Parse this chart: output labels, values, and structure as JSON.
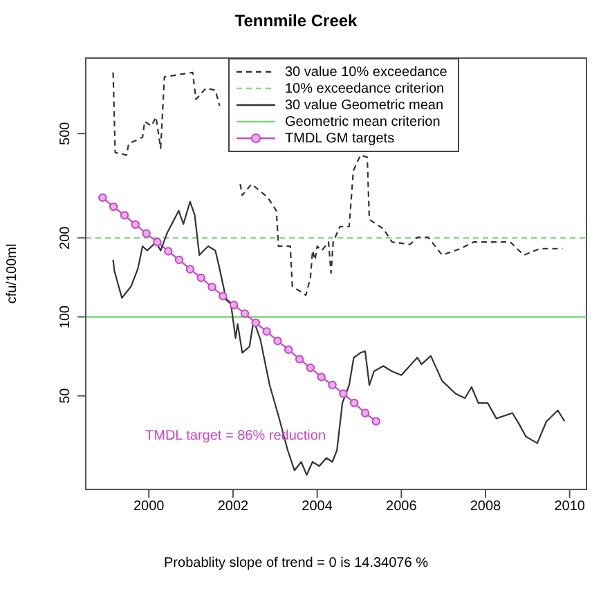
{
  "chart_data": {
    "type": "line",
    "title": "Tennmile Creek",
    "ylabel": "cfu/100ml",
    "log": "y",
    "legend": "top",
    "xlim": [
      1998.5,
      2010.4
    ],
    "xticks": [
      2000,
      2002,
      2004,
      2006,
      2008,
      2010
    ],
    "ylim": [
      22,
      970
    ],
    "yticks": [
      50,
      100,
      200,
      500
    ],
    "annotations": [
      "TMDL target = 86% reduction",
      "Probablity slope of trend = 0 is  14.34076 %"
    ],
    "ref_lines": [
      {
        "axis": "y",
        "value": 200,
        "label": "10% exceedance criterion",
        "color": "#88dd88",
        "line_style": "dashed"
      },
      {
        "axis": "y",
        "value": 100,
        "label": "Geometric mean criterion",
        "color": "#77dd77",
        "line_style": "solid"
      }
    ],
    "series": [
      {
        "name": "30 value 10% exceedance",
        "color": "#333333",
        "line_style": "dashed",
        "x": [
          1999.15,
          1999.2,
          1999.47,
          1999.52,
          1999.85,
          1999.9,
          2000.06,
          2000.17,
          2000.28,
          2000.37,
          2001.04,
          2001.12,
          2001.36,
          2001.58,
          2001.68,
          2001.9,
          2002.06,
          2002.17,
          2002.22,
          2002.44,
          2002.82,
          2003.03,
          2003.08,
          2003.36,
          2003.41,
          2003.73,
          2003.84,
          2003.89,
          2003.95,
          2004.0,
          2004.11,
          2004.27,
          2004.33,
          2004.38,
          2004.54,
          2004.76,
          2004.86,
          2005.03,
          2005.19,
          2005.24,
          2005.57,
          2005.78,
          2006.21,
          2006.38,
          2006.64,
          2006.97,
          2007.4,
          2007.72,
          2008.59,
          2008.91,
          2009.29,
          2009.83
        ],
        "values": [
          855,
          423,
          414,
          457,
          484,
          556,
          535,
          578,
          440,
          822,
          855,
          676,
          745,
          731,
          638,
          null,
          null,
          321,
          291,
          321,
          286,
          254,
          186,
          186,
          131,
          121,
          141,
          179,
          165,
          186,
          179,
          193,
          147,
          193,
          221,
          221,
          361,
          414,
          406,
          235,
          217,
          193,
          189,
          201,
          201,
          172,
          182,
          193,
          193,
          172,
          182,
          182
        ]
      },
      {
        "name": "30 value Geometric mean",
        "color": "#333333",
        "line_style": "solid",
        "x": [
          1999.15,
          1999.18,
          1999.36,
          1999.58,
          1999.74,
          1999.85,
          1999.96,
          2000.17,
          2000.28,
          2000.44,
          2000.71,
          2000.82,
          2000.98,
          2001.09,
          2001.2,
          2001.3,
          2001.41,
          2001.58,
          2001.68,
          2001.84,
          2001.95,
          2002.06,
          2002.11,
          2002.22,
          2002.39,
          2002.49,
          2002.65,
          2002.87,
          2003.08,
          2003.3,
          2003.46,
          2003.62,
          2003.75,
          2003.89,
          2004.05,
          2004.22,
          2004.36,
          2004.47,
          2004.6,
          2004.76,
          2004.87,
          2005.03,
          2005.14,
          2005.24,
          2005.35,
          2005.57,
          2005.78,
          2006.0,
          2006.38,
          2006.48,
          2006.7,
          2006.97,
          2007.29,
          2007.51,
          2007.67,
          2007.83,
          2008.05,
          2008.26,
          2008.64,
          2008.8,
          2008.96,
          2009.23,
          2009.45,
          2009.72,
          2009.88
        ],
        "values": [
          165,
          150,
          118,
          131,
          153,
          186,
          179,
          193,
          179,
          210,
          254,
          226,
          275,
          244,
          172,
          179,
          186,
          179,
          153,
          116,
          112,
          83,
          94,
          73,
          77,
          97,
          82,
          55,
          42,
          31,
          26,
          28,
          25,
          28,
          27,
          29,
          28,
          31,
          47,
          55,
          70,
          73,
          74,
          55,
          62,
          65,
          62,
          60,
          70,
          66,
          71,
          57,
          51,
          49,
          54,
          47,
          47,
          41,
          43,
          39,
          35,
          33,
          40,
          44,
          40
        ]
      },
      {
        "name": "TMDL GM targets",
        "color": "#cc44cc",
        "line_style": "solid",
        "marker": "circle",
        "x": [
          1998.9,
          1999.16,
          1999.42,
          1999.68,
          1999.94,
          2000.2,
          2000.46,
          2000.72,
          2000.98,
          2001.24,
          2001.5,
          2001.76,
          2002.02,
          2002.28,
          2002.54,
          2002.8,
          2003.06,
          2003.32,
          2003.58,
          2003.84,
          2004.1,
          2004.36,
          2004.62,
          2004.88,
          2005.14,
          2005.4
        ],
        "values": [
          285,
          263,
          244,
          225,
          208,
          193,
          178,
          165,
          152,
          141,
          130,
          120,
          111,
          103,
          95,
          88,
          81,
          75,
          69,
          64,
          59,
          55,
          51,
          47,
          43,
          40
        ]
      }
    ]
  }
}
